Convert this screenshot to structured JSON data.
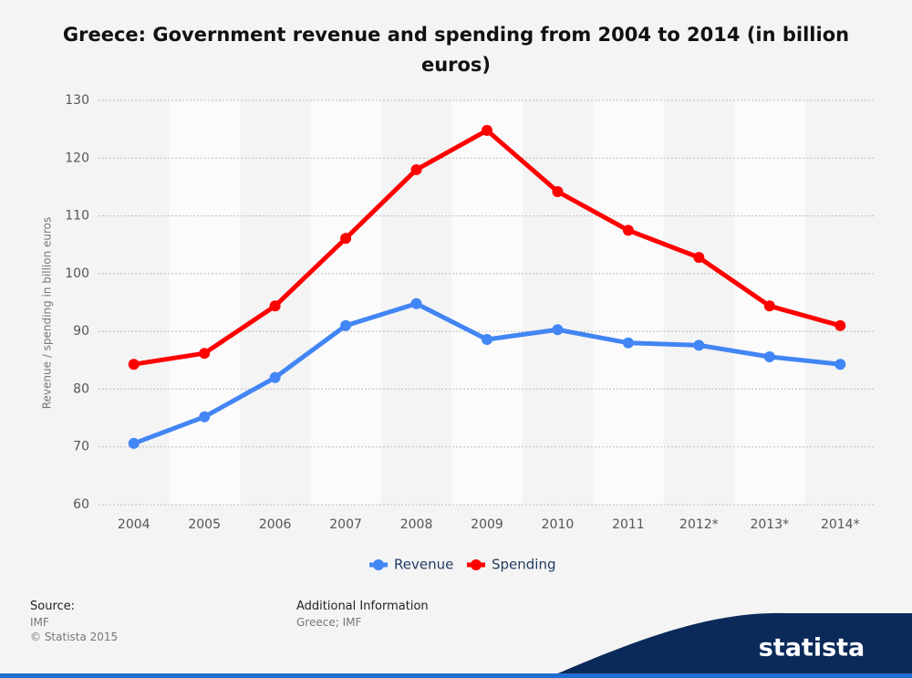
{
  "chart_data": {
    "type": "line",
    "title": "Greece: Government revenue and spending from 2004 to 2014 (in billion euros)",
    "ylabel": "Revenue / spending in billion euros",
    "categories": [
      "2004",
      "2005",
      "2006",
      "2007",
      "2008",
      "2009",
      "2010",
      "2011",
      "2012*",
      "2013*",
      "2014*"
    ],
    "series": [
      {
        "name": "Revenue",
        "color": "#4285f4",
        "values": [
          70.6,
          75.2,
          82,
          91,
          94.8,
          88.6,
          90.3,
          88,
          87.6,
          85.6,
          84.3
        ]
      },
      {
        "name": "Spending",
        "color": "#ff0000",
        "values": [
          84.3,
          86.2,
          94.4,
          106.1,
          118,
          124.8,
          114.2,
          107.5,
          102.8,
          94.4,
          91
        ]
      }
    ],
    "ylim": [
      60,
      130
    ],
    "yticks": [
      60,
      70,
      80,
      90,
      100,
      110,
      120,
      130
    ],
    "grid": true,
    "legend": "bottom"
  },
  "footer": {
    "source_label": "Source:",
    "source": "IMF",
    "copyright": "© Statista 2015",
    "info_label": "Additional Information",
    "info": "Greece; IMF",
    "logo": "statista"
  }
}
